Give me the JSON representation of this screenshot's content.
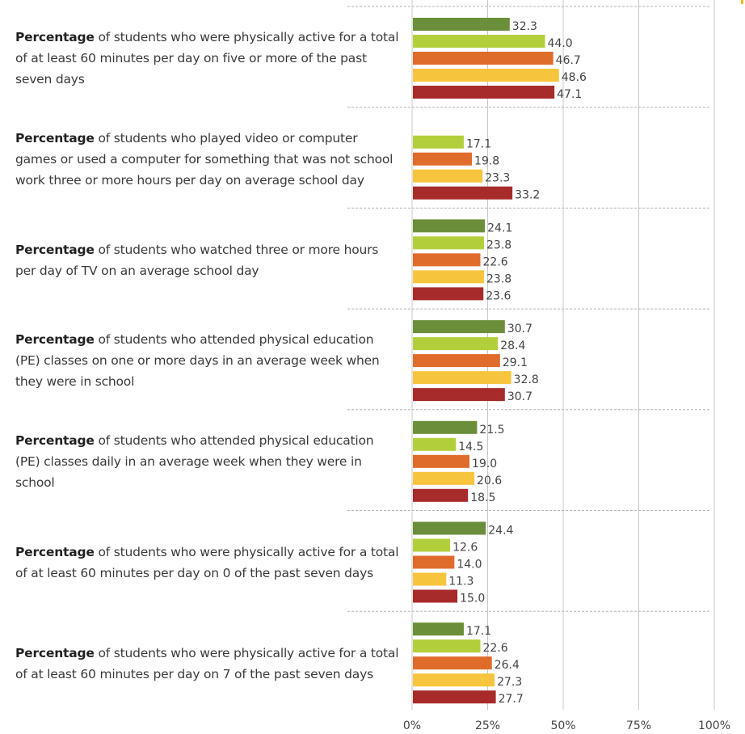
{
  "colors": {
    "series": [
      "#6b8e3a",
      "#b2cf3b",
      "#e06c2b",
      "#f7c43d",
      "#a82b2b"
    ],
    "grid": "#c8c8c8",
    "separator": "#b5b5b5",
    "accent_corner": "#f7b500"
  },
  "chart_data": {
    "type": "bar",
    "orientation": "horizontal",
    "xlim": [
      0,
      100
    ],
    "ticks": [
      "0%",
      "25%",
      "50%",
      "75%",
      "100%"
    ],
    "tick_values": [
      0,
      25,
      50,
      75,
      100
    ],
    "grid": true,
    "groups": [
      {
        "bold": "Percentage",
        "rest": " of students who were physically active for a total of at least 60 minutes per day on five or more of the past seven days",
        "values": [
          32.3,
          44.0,
          46.7,
          48.6,
          47.1
        ],
        "labels": [
          "32.3",
          "44.0",
          "46.7",
          "48.6",
          "47.1"
        ]
      },
      {
        "bold": "Percentage",
        "rest": " of students who played video or computer games or used a computer for something that was not school work three or more hours per day on average school day",
        "values": [
          null,
          17.1,
          19.8,
          23.3,
          33.2
        ],
        "labels": [
          "",
          "17.1",
          "19.8",
          "23.3",
          "33.2"
        ]
      },
      {
        "bold": "Percentage",
        "rest": " of students who watched three or more hours per day of TV on an average school day",
        "values": [
          24.1,
          23.8,
          22.6,
          23.8,
          23.6
        ],
        "labels": [
          "24.1",
          "23.8",
          "22.6",
          "23.8",
          "23.6"
        ]
      },
      {
        "bold": "Percentage",
        "rest": " of students who attended physical education (PE) classes on one or more days in an average week when they were in school",
        "values": [
          30.7,
          28.4,
          29.1,
          32.8,
          30.7
        ],
        "labels": [
          "30.7",
          "28.4",
          "29.1",
          "32.8",
          "30.7"
        ]
      },
      {
        "bold": "Percentage",
        "rest": " of students who attended physical education (PE) classes daily in an average week when they were in school",
        "values": [
          21.5,
          14.5,
          19.0,
          20.6,
          18.5
        ],
        "labels": [
          "21.5",
          "14.5",
          "19.0",
          "20.6",
          "18.5"
        ]
      },
      {
        "bold": "Percentage",
        "rest": " of students who were physically active for a total of at least 60 minutes per day on 0 of the past seven days",
        "values": [
          24.4,
          12.6,
          14.0,
          11.3,
          15.0
        ],
        "labels": [
          "24.4",
          "12.6",
          "14.0",
          "11.3",
          "15.0"
        ]
      },
      {
        "bold": "Percentage",
        "rest": " of students who were physically active for a total of at least 60 minutes per day on 7 of the past seven days",
        "values": [
          17.1,
          22.6,
          26.4,
          27.3,
          27.7
        ],
        "labels": [
          "17.1",
          "22.6",
          "26.4",
          "27.3",
          "27.7"
        ]
      }
    ]
  }
}
